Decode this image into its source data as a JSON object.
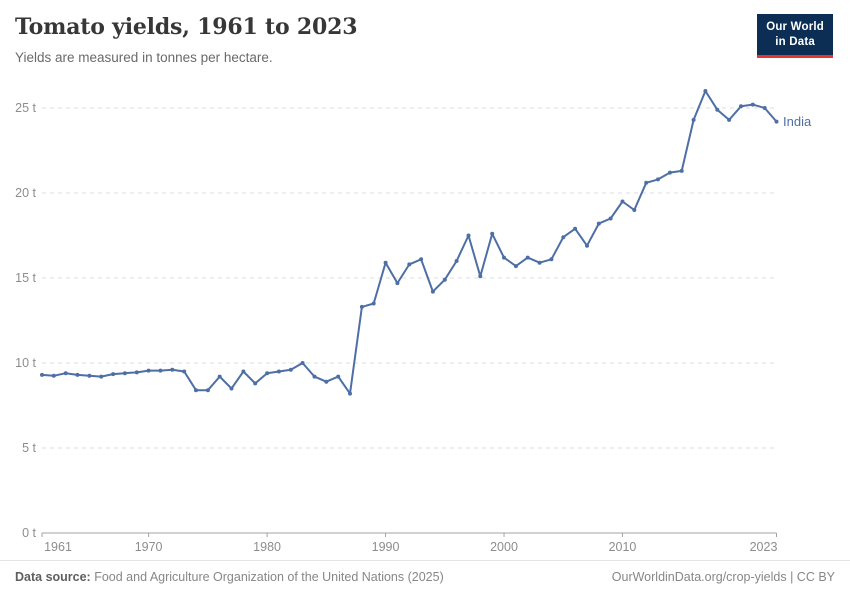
{
  "header": {
    "title": "Tomato yields, 1961 to 2023",
    "subtitle": "Yields are measured in tonnes per hectare.",
    "logo_line1": "Our World",
    "logo_line2": "in Data"
  },
  "chart_data": {
    "type": "line",
    "title": "Tomato yields, 1961 to 2023",
    "ylabel": "",
    "xlabel": "",
    "unit": "tonnes per hectare",
    "unit_suffix": "t",
    "grid": "horizontal-dashed",
    "legend_position": "end-of-line-label",
    "xlim": [
      1961,
      2023
    ],
    "ylim": [
      0,
      26.5
    ],
    "yticks": [
      0,
      5,
      10,
      15,
      20,
      25
    ],
    "ytick_labels": [
      "0 t",
      "5 t",
      "10 t",
      "15 t",
      "20 t",
      "25 t"
    ],
    "xticks": [
      1961,
      1970,
      1980,
      1990,
      2000,
      2010,
      2023
    ],
    "series": [
      {
        "name": "India",
        "color": "#4d6fa5",
        "x": [
          1961,
          1962,
          1963,
          1964,
          1965,
          1966,
          1967,
          1968,
          1969,
          1970,
          1971,
          1972,
          1973,
          1974,
          1975,
          1976,
          1977,
          1978,
          1979,
          1980,
          1981,
          1982,
          1983,
          1984,
          1985,
          1986,
          1987,
          1988,
          1989,
          1990,
          1991,
          1992,
          1993,
          1994,
          1995,
          1996,
          1997,
          1998,
          1999,
          2000,
          2001,
          2002,
          2003,
          2004,
          2005,
          2006,
          2007,
          2008,
          2009,
          2010,
          2011,
          2012,
          2013,
          2014,
          2015,
          2016,
          2017,
          2018,
          2019,
          2020,
          2021,
          2022,
          2023
        ],
        "values": [
          9.3,
          9.25,
          9.4,
          9.3,
          9.25,
          9.2,
          9.35,
          9.4,
          9.45,
          9.55,
          9.55,
          9.6,
          9.5,
          8.4,
          8.4,
          9.2,
          8.5,
          9.5,
          8.8,
          9.4,
          9.5,
          9.6,
          10.0,
          9.2,
          8.9,
          9.2,
          8.2,
          13.3,
          13.5,
          15.9,
          14.7,
          15.8,
          16.1,
          14.2,
          14.9,
          16.0,
          17.5,
          15.1,
          17.6,
          16.2,
          15.7,
          16.2,
          15.9,
          16.1,
          17.4,
          17.9,
          16.9,
          18.2,
          18.5,
          19.5,
          19.0,
          20.6,
          20.8,
          21.2,
          21.3,
          24.3,
          26.0,
          24.9,
          24.3,
          25.1,
          25.2,
          25.0,
          24.2
        ]
      }
    ]
  },
  "footer": {
    "source_label": "Data source:",
    "source_text": "Food and Agriculture Organization of the United Nations (2025)",
    "credit": "OurWorldinData.org/crop-yields | CC BY"
  },
  "colors": {
    "line": "#4d6fa5",
    "logo_bg": "#0d2e54",
    "logo_accent": "#e0382e",
    "gridline": "#dedede",
    "axis": "#a3a3a3",
    "tick_text": "#8d8d8d"
  }
}
